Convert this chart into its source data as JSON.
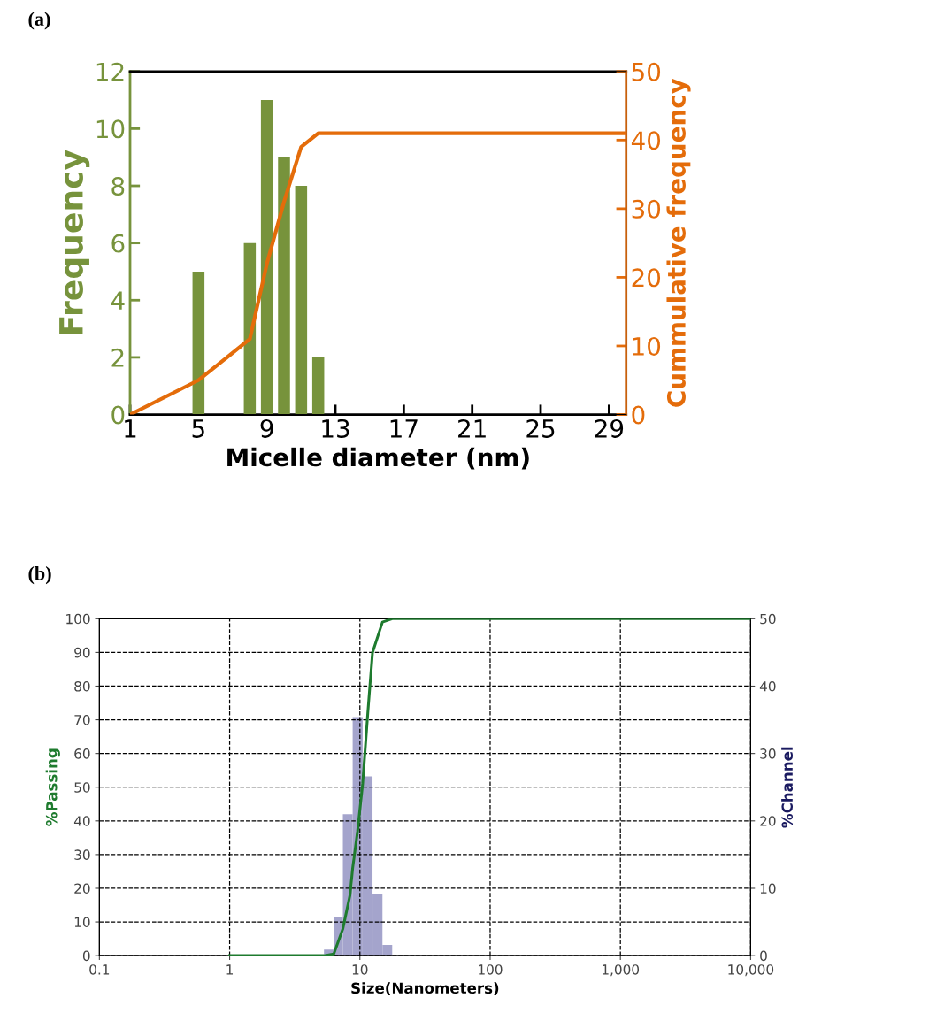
{
  "chart_data": [
    {
      "type": "bar",
      "title": "(a)",
      "xlabel": "Micelle diameter (nm)",
      "ylabel": "Frequency",
      "y2label": "Cummulative frequency",
      "xlim": [
        1,
        30
      ],
      "xticks": [
        1,
        5,
        9,
        13,
        17,
        21,
        25,
        29
      ],
      "ylim": [
        0,
        12
      ],
      "yticks": [
        0,
        2,
        4,
        6,
        8,
        10,
        12
      ],
      "y2lim": [
        0,
        50
      ],
      "y2ticks": [
        0,
        10,
        20,
        30,
        40,
        50
      ],
      "grid": false,
      "series": [
        {
          "color": "#77933c",
          "x": [
            5,
            8,
            9,
            10,
            11,
            12
          ],
          "values": [
            5,
            6,
            11,
            9,
            8,
            2
          ]
        },
        {
          "type": "line",
          "axis": "y2",
          "color": "#e46c0a",
          "x": [
            1,
            5,
            8,
            9,
            10,
            11,
            12,
            30
          ],
          "values": [
            0,
            5,
            11,
            22,
            31,
            39,
            41,
            41
          ]
        }
      ]
    },
    {
      "type": "line",
      "title": "(b)",
      "xlabel": "Size(Nanometers)",
      "ylabel": "%Passing",
      "y2label": "%Channel",
      "log": "x",
      "xlim": [
        0.1,
        10000
      ],
      "xticks": [
        0.1,
        1,
        10,
        100,
        {
          "value": 1000,
          "label": "1,000"
        },
        {
          "value": 10000,
          "label": "10,000"
        }
      ],
      "ylim": [
        0,
        100
      ],
      "yticks": [
        0,
        10,
        20,
        30,
        40,
        50,
        60,
        70,
        80,
        90,
        100
      ],
      "y2lim": [
        0,
        50
      ],
      "y2ticks": [
        0,
        10,
        20,
        30,
        40,
        50
      ],
      "grid": true,
      "series": [
        {
          "type": "histogram",
          "axis": "y2",
          "color": "#a4a4cc",
          "bins": [
            5.3,
            6.3,
            7.4,
            8.8,
            10.5,
            12.5,
            14.9,
            17.7
          ],
          "values": [
            0.9,
            5.8,
            21,
            35.4,
            26.6,
            9.2,
            1.6
          ]
        },
        {
          "color": "#1e7b2e",
          "x": [
            1,
            5.3,
            6.3,
            7.4,
            8.4,
            8.8,
            9.6,
            10.5,
            11.5,
            12.5,
            14.9,
            17.7,
            10000
          ],
          "values": [
            0,
            0,
            0.5,
            8,
            18,
            26,
            37,
            51,
            72,
            90,
            99,
            100,
            100
          ]
        }
      ]
    }
  ]
}
